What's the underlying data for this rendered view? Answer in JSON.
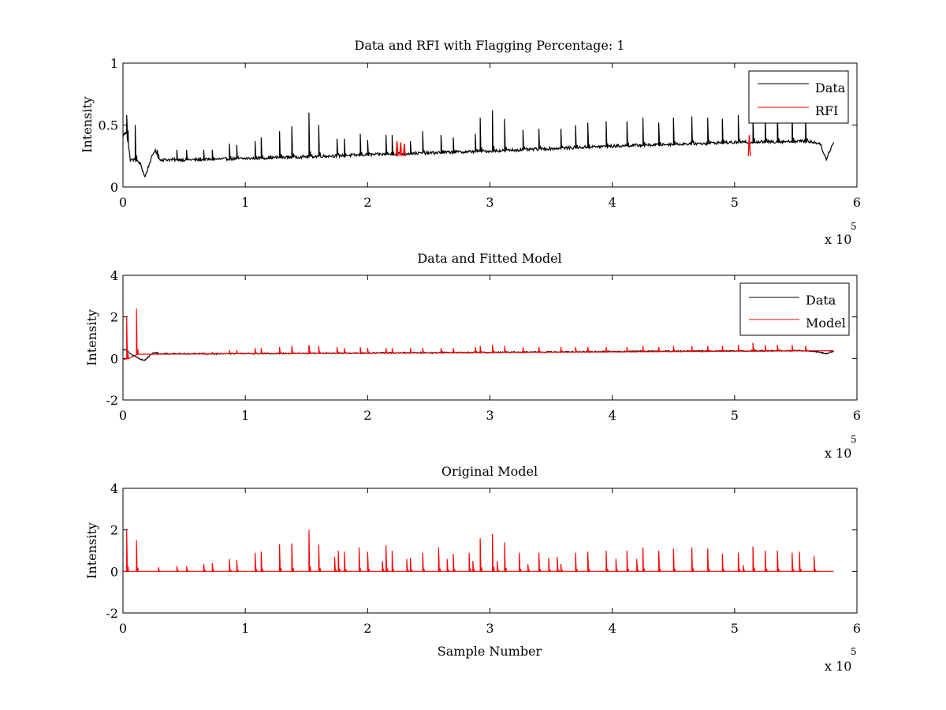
{
  "chart_data": [
    {
      "type": "line",
      "title": "Data and RFI with Flagging Percentage: 1",
      "xlabel": "",
      "ylabel": "Intensity",
      "xlim": [
        0,
        600000
      ],
      "ylim": [
        0,
        1
      ],
      "xticks": [
        0,
        100000,
        200000,
        300000,
        400000,
        500000,
        600000
      ],
      "xtick_labels": [
        "0",
        "1",
        "2",
        "3",
        "4",
        "5",
        "6"
      ],
      "yticks": [
        0,
        0.5,
        1
      ],
      "ytick_labels": [
        "0",
        "0.5",
        "1"
      ],
      "x_multiplier": {
        "base": "x 10",
        "exponent": "5"
      },
      "legend": {
        "placement": "top-right",
        "entries": [
          {
            "label": "Data",
            "color": "#000000"
          },
          {
            "label": "RFI",
            "color": "#ff0000"
          }
        ]
      },
      "series": [
        {
          "name": "Data",
          "color": "#000000",
          "baseline": {
            "x": [
              0,
              3000,
              6000,
              10000,
              14000,
              18000,
              22000,
              26000,
              30000,
              60000,
              100000,
              200000,
              300000,
              400000,
              500000,
              560000,
              570000,
              575000,
              578000,
              581000
            ],
            "y": [
              0.42,
              0.44,
              0.22,
              0.22,
              0.19,
              0.08,
              0.2,
              0.3,
              0.22,
              0.22,
              0.23,
              0.26,
              0.29,
              0.33,
              0.36,
              0.37,
              0.35,
              0.22,
              0.3,
              0.36
            ]
          },
          "spikes": [
            [
              3000,
              0.58
            ],
            [
              10000,
              0.5
            ],
            [
              28000,
              0.3
            ],
            [
              44000,
              0.3
            ],
            [
              52000,
              0.3
            ],
            [
              66000,
              0.3
            ],
            [
              73000,
              0.3
            ],
            [
              87000,
              0.35
            ],
            [
              93000,
              0.34
            ],
            [
              108000,
              0.37
            ],
            [
              113000,
              0.4
            ],
            [
              128000,
              0.45
            ],
            [
              138000,
              0.49
            ],
            [
              152000,
              0.6
            ],
            [
              160000,
              0.5
            ],
            [
              175000,
              0.39
            ],
            [
              181000,
              0.39
            ],
            [
              194000,
              0.43
            ],
            [
              200000,
              0.38
            ],
            [
              215000,
              0.42
            ],
            [
              220000,
              0.42
            ],
            [
              235000,
              0.37
            ],
            [
              245000,
              0.45
            ],
            [
              260000,
              0.42
            ],
            [
              270000,
              0.4
            ],
            [
              288000,
              0.43
            ],
            [
              292000,
              0.56
            ],
            [
              302000,
              0.62
            ],
            [
              312000,
              0.55
            ],
            [
              327000,
              0.46
            ],
            [
              340000,
              0.47
            ],
            [
              358000,
              0.47
            ],
            [
              370000,
              0.5
            ],
            [
              380000,
              0.52
            ],
            [
              395000,
              0.53
            ],
            [
              412000,
              0.53
            ],
            [
              425000,
              0.56
            ],
            [
              438000,
              0.52
            ],
            [
              450000,
              0.56
            ],
            [
              465000,
              0.57
            ],
            [
              478000,
              0.56
            ],
            [
              490000,
              0.55
            ],
            [
              503000,
              0.58
            ],
            [
              515000,
              0.61
            ],
            [
              525000,
              0.6
            ],
            [
              535000,
              0.6
            ],
            [
              547000,
              0.61
            ],
            [
              558000,
              0.57
            ]
          ]
        },
        {
          "name": "RFI",
          "color": "#ff0000",
          "spikes": [
            [
              224000,
              0.37
            ],
            [
              227000,
              0.36
            ],
            [
              230000,
              0.35
            ],
            [
              512000,
              0.42
            ]
          ]
        }
      ]
    },
    {
      "type": "line",
      "title": "Data and Fitted Model",
      "xlabel": "",
      "ylabel": "Intensity",
      "xlim": [
        0,
        600000
      ],
      "ylim": [
        -2,
        4
      ],
      "xticks": [
        0,
        100000,
        200000,
        300000,
        400000,
        500000,
        600000
      ],
      "xtick_labels": [
        "0",
        "1",
        "2",
        "3",
        "4",
        "5",
        "6"
      ],
      "yticks": [
        -2,
        0,
        2,
        4
      ],
      "ytick_labels": [
        "-2",
        "0",
        "2",
        "4"
      ],
      "x_multiplier": {
        "base": "x 10",
        "exponent": "5"
      },
      "legend": {
        "placement": "top-right",
        "entries": [
          {
            "label": "Data",
            "color": "#000000"
          },
          {
            "label": "Model",
            "color": "#ff0000"
          }
        ]
      },
      "series": [
        {
          "name": "Data",
          "color": "#000000",
          "baseline": {
            "x": [
              0,
              3000,
              6000,
              10000,
              14000,
              18000,
              22000,
              26000,
              30000,
              100000,
              200000,
              300000,
              400000,
              500000,
              560000,
              570000,
              575000,
              581000
            ],
            "y": [
              0.42,
              0.44,
              0.22,
              0.1,
              -0.05,
              -0.08,
              0.15,
              0.3,
              0.22,
              0.23,
              0.26,
              0.29,
              0.33,
              0.36,
              0.37,
              0.3,
              0.22,
              0.36
            ]
          },
          "spikes": [
            [
              152000,
              0.6
            ],
            [
              302000,
              0.6
            ],
            [
              515000,
              0.65
            ]
          ]
        },
        {
          "name": "Model",
          "color": "#ff0000",
          "baseline": {
            "x": [
              0,
              5000,
              12000,
              581000
            ],
            "y": [
              -0.05,
              0.0,
              0.2,
              0.37
            ]
          },
          "spikes": [
            [
              3000,
              2.0
            ],
            [
              11000,
              2.4
            ],
            [
              28000,
              0.2
            ],
            [
              44000,
              0.2
            ],
            [
              52000,
              0.2
            ],
            [
              66000,
              0.3
            ],
            [
              73000,
              0.3
            ],
            [
              87000,
              0.4
            ],
            [
              93000,
              0.4
            ],
            [
              108000,
              0.5
            ],
            [
              113000,
              0.5
            ],
            [
              128000,
              0.55
            ],
            [
              138000,
              0.6
            ],
            [
              152000,
              0.65
            ],
            [
              160000,
              0.6
            ],
            [
              175000,
              0.55
            ],
            [
              181000,
              0.5
            ],
            [
              194000,
              0.55
            ],
            [
              200000,
              0.5
            ],
            [
              215000,
              0.5
            ],
            [
              220000,
              0.5
            ],
            [
              235000,
              0.5
            ],
            [
              245000,
              0.5
            ],
            [
              260000,
              0.5
            ],
            [
              270000,
              0.5
            ],
            [
              288000,
              0.55
            ],
            [
              292000,
              0.6
            ],
            [
              302000,
              0.65
            ],
            [
              312000,
              0.6
            ],
            [
              327000,
              0.55
            ],
            [
              340000,
              0.55
            ],
            [
              358000,
              0.55
            ],
            [
              370000,
              0.55
            ],
            [
              380000,
              0.55
            ],
            [
              395000,
              0.55
            ],
            [
              412000,
              0.55
            ],
            [
              425000,
              0.6
            ],
            [
              438000,
              0.55
            ],
            [
              450000,
              0.6
            ],
            [
              465000,
              0.6
            ],
            [
              478000,
              0.6
            ],
            [
              490000,
              0.6
            ],
            [
              503000,
              0.65
            ],
            [
              515000,
              0.75
            ],
            [
              525000,
              0.65
            ],
            [
              535000,
              0.65
            ],
            [
              547000,
              0.65
            ],
            [
              558000,
              0.6
            ]
          ]
        }
      ]
    },
    {
      "type": "line",
      "title": "Original Model",
      "xlabel": "Sample Number",
      "ylabel": "Intensity",
      "xlim": [
        0,
        600000
      ],
      "ylim": [
        -2,
        4
      ],
      "xticks": [
        0,
        100000,
        200000,
        300000,
        400000,
        500000,
        600000
      ],
      "xtick_labels": [
        "0",
        "1",
        "2",
        "3",
        "4",
        "5",
        "6"
      ],
      "yticks": [
        -2,
        0,
        2,
        4
      ],
      "ytick_labels": [
        "-2",
        "0",
        "2",
        "4"
      ],
      "x_multiplier": {
        "base": "x 10",
        "exponent": "5"
      },
      "series": [
        {
          "color": "#ff0000",
          "baseline": {
            "x": [
              0,
              581000
            ],
            "y": [
              0,
              0
            ]
          },
          "spikes": [
            [
              3000,
              2.0
            ],
            [
              11000,
              1.5
            ],
            [
              29000,
              0.2
            ],
            [
              44000,
              0.25
            ],
            [
              52000,
              0.25
            ],
            [
              66000,
              0.35
            ],
            [
              73000,
              0.4
            ],
            [
              87000,
              0.6
            ],
            [
              93000,
              0.55
            ],
            [
              108000,
              0.9
            ],
            [
              113000,
              0.95
            ],
            [
              128000,
              1.3
            ],
            [
              138000,
              1.35
            ],
            [
              152000,
              2.0
            ],
            [
              160000,
              1.3
            ],
            [
              173000,
              0.7
            ],
            [
              176000,
              1.0
            ],
            [
              181000,
              0.95
            ],
            [
              193000,
              1.15
            ],
            [
              200000,
              0.95
            ],
            [
              212000,
              0.5
            ],
            [
              215000,
              1.25
            ],
            [
              220000,
              1.0
            ],
            [
              232000,
              0.6
            ],
            [
              235000,
              0.65
            ],
            [
              245000,
              0.9
            ],
            [
              258000,
              1.15
            ],
            [
              265000,
              0.6
            ],
            [
              270000,
              0.85
            ],
            [
              283000,
              0.9
            ],
            [
              286000,
              0.5
            ],
            [
              292000,
              1.6
            ],
            [
              302000,
              1.8
            ],
            [
              306000,
              0.5
            ],
            [
              312000,
              1.4
            ],
            [
              324000,
              0.9
            ],
            [
              331000,
              0.35
            ],
            [
              340000,
              0.9
            ],
            [
              348000,
              0.65
            ],
            [
              355000,
              0.7
            ],
            [
              358000,
              0.35
            ],
            [
              370000,
              0.9
            ],
            [
              380000,
              0.95
            ],
            [
              395000,
              1.0
            ],
            [
              403000,
              0.6
            ],
            [
              412000,
              1.0
            ],
            [
              420000,
              0.6
            ],
            [
              425000,
              1.15
            ],
            [
              438000,
              1.0
            ],
            [
              450000,
              1.1
            ],
            [
              465000,
              1.15
            ],
            [
              478000,
              1.1
            ],
            [
              490000,
              0.85
            ],
            [
              503000,
              0.9
            ],
            [
              507000,
              0.3
            ],
            [
              515000,
              1.2
            ],
            [
              525000,
              1.0
            ],
            [
              535000,
              1.0
            ],
            [
              547000,
              0.9
            ],
            [
              553000,
              0.95
            ],
            [
              565000,
              0.75
            ]
          ]
        }
      ]
    }
  ]
}
